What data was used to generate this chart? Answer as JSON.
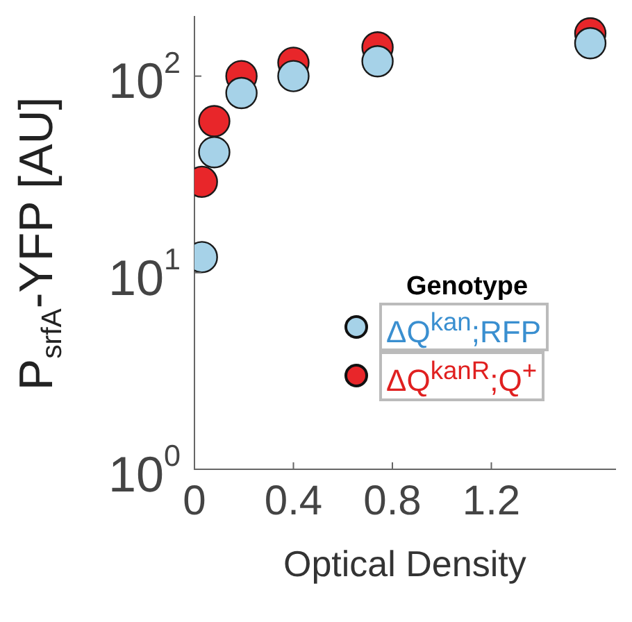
{
  "chart_data": {
    "type": "scatter",
    "xlabel": "Optical Density",
    "ylabel": "P$_{srfA}$-YFP [AU]",
    "legend_title": "Genotype",
    "x": [
      0.03,
      0.08,
      0.19,
      0.4,
      0.74,
      1.6
    ],
    "series": [
      {
        "name": "ΔQ$^{kanR}$;Q$^{+}$",
        "color": "#e8262a",
        "values": [
          29,
          59,
          100,
          117,
          140,
          165
        ]
      },
      {
        "name": "ΔQ$^{kan}$;RFP",
        "color": "#a6d2e8",
        "values": [
          12,
          41,
          82,
          100,
          119,
          147
        ]
      }
    ],
    "xlim": [
      0,
      1.7
    ],
    "xticks": [
      0,
      0.4,
      0.8,
      1.2
    ],
    "ylim": [
      1,
      200
    ],
    "yticks": [
      {
        "value": 1,
        "label": "10$^{0}$"
      },
      {
        "value": 10,
        "label": "10$^{1}$"
      },
      {
        "value": 100,
        "label": "10$^{2}$"
      }
    ],
    "log": "y",
    "grid": false,
    "legend": "right",
    "marker": "circle"
  }
}
